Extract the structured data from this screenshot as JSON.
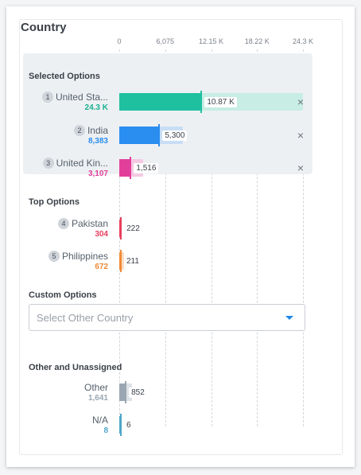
{
  "panel": {
    "title": "Country"
  },
  "axis": {
    "ticks": [
      "0",
      "6,075",
      "12.15 K",
      "18.22 K",
      "24.3 K"
    ],
    "max": 24300
  },
  "sections": {
    "selected": "Selected Options",
    "top": "Top Options",
    "custom": "Custom Options",
    "other": "Other and Unassigned"
  },
  "colors": {
    "teal": "#1fc0a0",
    "blue": "#2a8df0",
    "pink": "#e23f9b",
    "red": "#e83e5c",
    "orange": "#f08a36",
    "gray": "#9aa7b3",
    "lightblue": "#4fa6c9"
  },
  "selected_options": [
    {
      "rank": "1",
      "label": "United Sta...",
      "total": "24.3 K",
      "total_num": 24300,
      "value": "10.87 K",
      "value_num": 10870,
      "color": "#1fc0a0",
      "bg": "#c7ede4",
      "value_color": "#18b08f"
    },
    {
      "rank": "2",
      "label": "India",
      "total": "8,383",
      "total_num": 8383,
      "value": "5,300",
      "value_num": 5300,
      "color": "#2a8df0",
      "bg": "#c8def6",
      "value_color": "#2a8df0"
    },
    {
      "rank": "3",
      "label": "United Kin...",
      "total": "3,107",
      "total_num": 3107,
      "value": "1,516",
      "value_num": 1516,
      "color": "#e23f9b",
      "bg": "#f5c9e2",
      "value_color": "#e23f9b"
    }
  ],
  "top_options": [
    {
      "rank": "4",
      "label": "Pakistan",
      "total": "304",
      "total_num": 304,
      "value": "222",
      "value_num": 222,
      "color": "#e83e5c",
      "bg": "#f7c8d1",
      "value_color": "#e83e5c"
    },
    {
      "rank": "5",
      "label": "Philippines",
      "total": "672",
      "total_num": 672,
      "value": "211",
      "value_num": 211,
      "color": "#f08a36",
      "bg": "#f9dcc3",
      "value_color": "#f08a36"
    }
  ],
  "custom": {
    "placeholder": "Select Other Country"
  },
  "other_options": [
    {
      "label": "Other",
      "total": "1,641",
      "total_num": 1641,
      "value": "852",
      "value_num": 852,
      "color": "#9aa7b3",
      "bg": "#dde2e7",
      "value_color": "#9aa7b3"
    },
    {
      "label": "N/A",
      "total": "8",
      "total_num": 8,
      "value": "6",
      "value_num": 6,
      "color": "#4fa6c9",
      "bg": "#cde6f0",
      "value_color": "#4fa6c9"
    }
  ],
  "remove_symbol": "×"
}
